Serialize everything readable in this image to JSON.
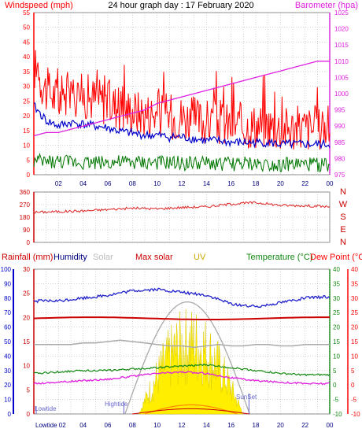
{
  "header": {
    "title": "24 hour graph day : 17 February 2020",
    "left_label": "Windspeed (mph)",
    "right_label": "Barometer (hpa)"
  },
  "colors": {
    "wind": "#ff0000",
    "wind_avg": "#0000cc",
    "wind_low": "#007700",
    "barometer": "#e020e0",
    "direction": "#dd2222",
    "grid": "#aaaaaa",
    "rain_axis": "#0000cc",
    "humidity": "#2222cc",
    "solar": "#aaaaaa",
    "max_solar": "#cc0000",
    "uv": "#ccaa00",
    "temperature": "#118811",
    "dewpoint": "#ff0000",
    "panel_bg": "#ffffff"
  },
  "time_labels": [
    "02",
    "04",
    "06",
    "08",
    "10",
    "12",
    "14",
    "16",
    "18",
    "20",
    "22",
    "00"
  ],
  "bottom_time_labels": [
    "Lowtide 02",
    "04",
    "06",
    "08",
    "10",
    "12",
    "14",
    "16",
    "18",
    "20",
    "22",
    "00"
  ],
  "chart_data": [
    {
      "type": "line",
      "title": "24 hour graph day : 17 February 2020",
      "ylabel": "Windspeed (mph)",
      "y2label": "Barometer (hpa)",
      "ylim": [
        0,
        55
      ],
      "y2lim": [
        975,
        1025
      ],
      "y_ticks": [
        0,
        5,
        10,
        15,
        20,
        25,
        30,
        35,
        40,
        45,
        50,
        55
      ],
      "y2_ticks": [
        975,
        980,
        985,
        990,
        995,
        1000,
        1005,
        1010,
        1015,
        1020,
        1025
      ],
      "x_hours": [
        0,
        1,
        2,
        3,
        4,
        5,
        6,
        7,
        8,
        9,
        10,
        11,
        12,
        13,
        14,
        15,
        16,
        17,
        18,
        19,
        20,
        21,
        22,
        23,
        24
      ],
      "series": [
        {
          "name": "Windspeed (mph)",
          "values": [
            36,
            28,
            25,
            27,
            26,
            25,
            24,
            22,
            21,
            20,
            20,
            19,
            19,
            18,
            17,
            17,
            16,
            16,
            16,
            16,
            15,
            15,
            15,
            15,
            15
          ]
        },
        {
          "name": "Barometer (hpa)",
          "values": [
            987,
            988,
            988,
            989,
            990,
            991,
            992,
            993,
            994,
            995,
            997,
            998,
            999,
            1000,
            1001,
            1002,
            1003,
            1004,
            1005,
            1006,
            1007,
            1008,
            1009,
            1010,
            1010
          ]
        }
      ]
    },
    {
      "type": "line",
      "ylabel": "Wind direction",
      "ylim": [
        0,
        360
      ],
      "y_ticks": [
        0,
        90,
        180,
        270,
        360
      ],
      "direction_labels": [
        "N",
        "W",
        "S",
        "E",
        "N"
      ],
      "x_hours": [
        0,
        2,
        4,
        6,
        8,
        10,
        12,
        14,
        16,
        18,
        20,
        22,
        24
      ],
      "series": [
        {
          "name": "Direction",
          "values": [
            215,
            220,
            225,
            235,
            245,
            240,
            250,
            255,
            275,
            285,
            265,
            262,
            255
          ]
        }
      ]
    },
    {
      "type": "line",
      "legend": [
        "Rainfall (mm)",
        "Humidity",
        "Solar",
        "Max solar",
        "UV",
        "Temperature (°C)",
        "Dew Point (°C)"
      ],
      "rain_axis": [
        0,
        10,
        20,
        30,
        40,
        50,
        60,
        70,
        80,
        90,
        100
      ],
      "mid_axis": [
        0,
        5,
        10,
        15,
        20,
        25,
        30
      ],
      "temp_axis": [
        -10,
        -5,
        0,
        5,
        10,
        15,
        20,
        25,
        30,
        35,
        40
      ],
      "ylim_temp": [
        -10,
        40
      ],
      "x_hours": [
        0,
        2,
        4,
        6,
        8,
        10,
        12,
        14,
        16,
        18,
        20,
        22,
        24
      ],
      "series": [
        {
          "name": "Humidity",
          "values": [
            78,
            78,
            80,
            82,
            85,
            86,
            84,
            82,
            76,
            74,
            77,
            80,
            81
          ]
        },
        {
          "name": "Solar",
          "values": [
            0,
            0,
            0,
            0,
            0,
            300,
            450,
            380,
            150,
            0,
            0,
            0,
            0
          ]
        },
        {
          "name": "Max solar",
          "values": [
            0,
            0,
            0,
            0,
            5,
            40,
            95,
            70,
            20,
            0,
            0,
            0,
            0
          ]
        },
        {
          "name": "Temperature (°C)",
          "values": [
            4,
            4.5,
            5,
            5,
            5.5,
            6,
            6.5,
            7,
            6,
            5,
            4,
            3.5,
            3.5
          ]
        },
        {
          "name": "Dew Point (°C)",
          "values": [
            0.5,
            1,
            1.5,
            2,
            3,
            4,
            4.5,
            4,
            2.5,
            1.5,
            1,
            0.5,
            0.5
          ]
        }
      ],
      "annotations": [
        "Lowtide",
        "Hightide",
        "SunSet"
      ]
    }
  ]
}
